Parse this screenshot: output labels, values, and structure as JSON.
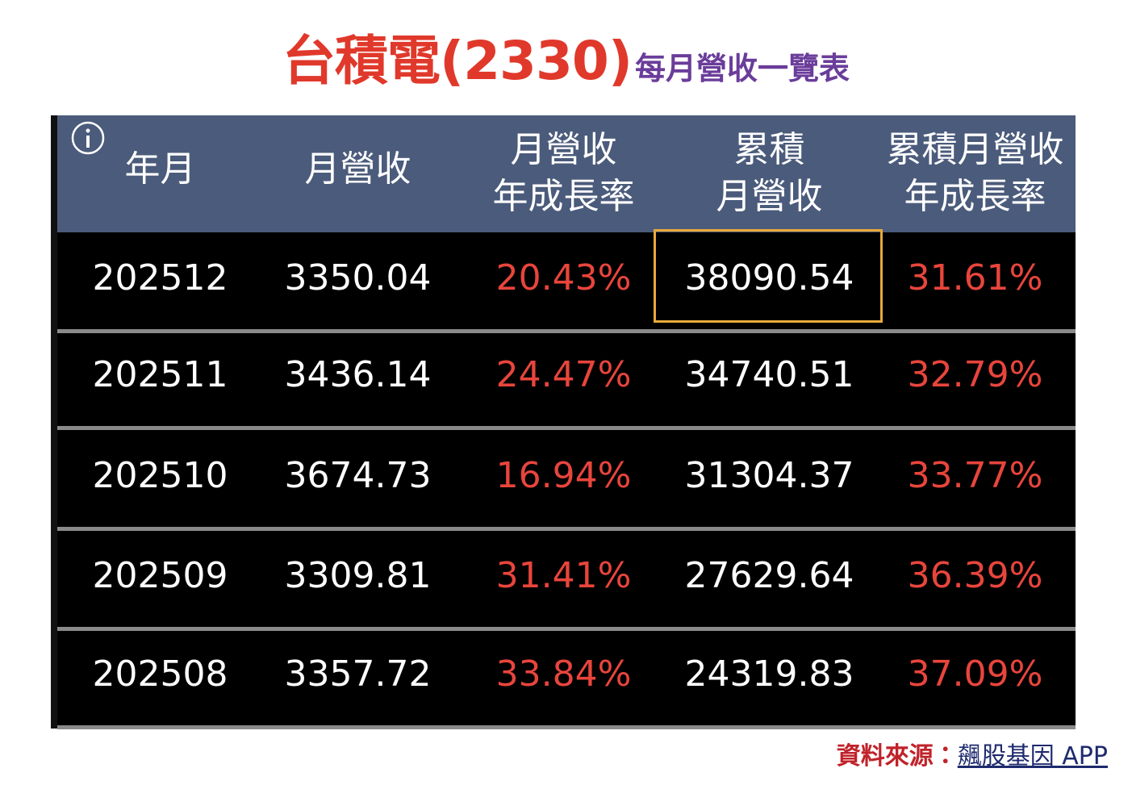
{
  "header": {
    "title": "台積電(2330)",
    "subtitle": "每月營收一覽表"
  },
  "table": {
    "columns": [
      [
        "年月"
      ],
      [
        "月營收"
      ],
      [
        "月營收",
        "年成長率"
      ],
      [
        "累積",
        "月營收"
      ],
      [
        "累積月營收",
        "年成長率"
      ]
    ],
    "rows": [
      [
        "202512",
        "3350.04",
        "20.43%",
        "38090.54",
        "31.61%"
      ],
      [
        "202511",
        "3436.14",
        "24.47%",
        "34740.51",
        "32.79%"
      ],
      [
        "202510",
        "3674.73",
        "16.94%",
        "31304.37",
        "33.77%"
      ],
      [
        "202509",
        "3309.81",
        "31.41%",
        "27629.64",
        "36.39%"
      ],
      [
        "202508",
        "3357.72",
        "33.84%",
        "24319.83",
        "37.09%"
      ]
    ]
  },
  "footer": {
    "label": "資料來源：",
    "source": "飆股基因 APP"
  }
}
